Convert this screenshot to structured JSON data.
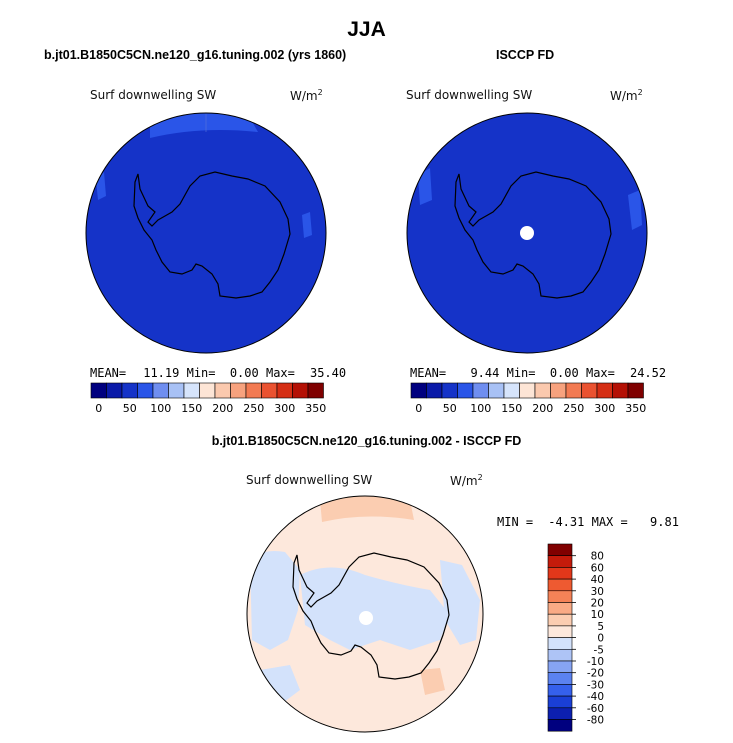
{
  "figure": {
    "title": "JJA"
  },
  "panels": {
    "left": {
      "header": "b.jt01.B1850C5CN.ne120_g16.tuning.002 (yrs 1860)",
      "variable": "Surf downwelling SW",
      "units_base": "W/m",
      "units_exp": "2",
      "stats": {
        "mean_label": "MEAN=",
        "mean": "11.19",
        "min_label": "Min=",
        "min": "0.00",
        "max_label": "Max=",
        "max": "35.40"
      }
    },
    "right": {
      "header": "ISCCP FD",
      "variable": "Surf downwelling SW",
      "units_base": "W/m",
      "units_exp": "2",
      "stats": {
        "mean_label": "MEAN=",
        "mean": "9.44",
        "min_label": "Min=",
        "min": "0.00",
        "max_label": "Max=",
        "max": "24.52"
      }
    },
    "diff": {
      "header": "b.jt01.B1850C5CN.ne120_g16.tuning.002 - ISCCP FD",
      "variable": "Surf downwelling SW",
      "units_base": "W/m",
      "units_exp": "2",
      "stats": {
        "min_label": "MIN =",
        "min": "-4.31",
        "max_label": "MAX =",
        "max": "9.81"
      }
    }
  },
  "colorbar_abs": {
    "colors": [
      "#00007f",
      "#0a1aa8",
      "#1533c8",
      "#2a55e8",
      "#6f8ef0",
      "#a8c1f5",
      "#d6e4fb",
      "#fde5d6",
      "#fbc9ae",
      "#f7a27e",
      "#f27a52",
      "#ea5230",
      "#d52e14",
      "#b41005",
      "#7f0000"
    ],
    "tick_labels": [
      "0",
      "50",
      "100",
      "150",
      "200",
      "250",
      "300",
      "350"
    ],
    "tick_box_index": [
      0,
      2,
      4,
      6,
      8,
      10,
      12,
      14
    ]
  },
  "colorbar_diff": {
    "colors_bottom_to_top": [
      "#00007f",
      "#0c1fb0",
      "#1a3fd6",
      "#3560ec",
      "#5b82f0",
      "#86a4f3",
      "#aec4f6",
      "#d3e2fb",
      "#fde8dc",
      "#fbcdb1",
      "#f9aa85",
      "#f48257",
      "#ee5a31",
      "#e2371a",
      "#c41b0b",
      "#800000"
    ],
    "tick_labels_top_to_bottom": [
      "80",
      "60",
      "40",
      "30",
      "20",
      "10",
      "5",
      "0",
      "-5",
      "-10",
      "-20",
      "-30",
      "-40",
      "-60",
      "-80"
    ]
  },
  "map_colors": {
    "ocean_fill": "#1533c8",
    "ocean_fill_light": "#2a55e8",
    "diff_warm": "#fde8dc",
    "diff_warm_strong": "#fbcdb1",
    "diff_cool": "#d3e2fb",
    "pole_hole": "#ffffff"
  }
}
